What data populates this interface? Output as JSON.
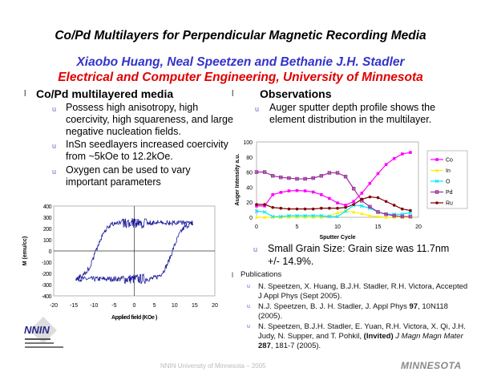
{
  "title": "Co/Pd Multilayers for Perpendicular Magnetic Recording Media",
  "authors": "Xiaobo Huang, Neal Speetzen and Bethanie J.H. Stadler",
  "affiliation": "Electrical and Computer Engineering, University of Minnesota",
  "left": {
    "heading": "Co/Pd multilayered media",
    "bullets": [
      "Possess high anisotropy, high coercivity, high squareness, and large negative nucleation fields.",
      "InSn seedlayers increased coercivity from ~5kOe to 12.2kOe.",
      "Oxygen can be used to vary important parameters"
    ]
  },
  "right": {
    "heading": "Observations",
    "bullet1": "Auger sputter depth profile shows the element distribution in the multilayer.",
    "bullet2": "Small Grain Size: Grain size was 11.7nm +/-  14.9%.",
    "pub_heading": "Publications",
    "pubs": [
      {
        "text": "N. Speetzen, X. Huang, B.J.H. Stadler, R.H. Victora, Accepted J Appl Phys (Sept 2005)."
      },
      {
        "pre": "N.J. Speetzen, B. J. H. Stadler, J. Appl Phys ",
        "bold": "97",
        "post": ", 10N118 (2005)."
      },
      {
        "pre": "N. Speetzen, B.J.H. Stadler, E. Yuan, R.H. Victora, X. Qi, J.H. Judy, N. Supper, and T. Pohkil, ",
        "bold": "(Invited)",
        "ital": " J Magn Magn Mater ",
        "bold2": "287",
        "post": ", 181-7 (2005)."
      }
    ]
  },
  "footer": "NNIN University of Minnesota – 2005",
  "logo_right": "MINNESOTA",
  "logo_left": "NNIN",
  "colors": {
    "author": "#3333cc",
    "affil": "#e00000",
    "bullet": "#6666cc",
    "loop": "#1a1a99"
  },
  "chart_data": [
    {
      "type": "line",
      "xlabel": "Sputter Cycle",
      "ylabel": "Auger Intensity a.u.",
      "xlim": [
        0,
        20
      ],
      "ylim": [
        0,
        100
      ],
      "xticks": [
        "0",
        "5",
        "10",
        "15",
        "20"
      ],
      "yticks": [
        "0",
        "20",
        "40",
        "60",
        "80",
        "100"
      ],
      "legend": "right",
      "x": [
        0,
        1,
        2,
        3,
        4,
        5,
        6,
        7,
        8,
        9,
        10,
        11,
        12,
        13,
        14,
        15,
        16,
        17,
        18,
        19
      ],
      "series": [
        {
          "name": "Co",
          "color": "#ff00ff",
          "marker": "square",
          "values": [
            15,
            15,
            30,
            33,
            35,
            35.5,
            35,
            33.5,
            30,
            25,
            19,
            16,
            21,
            32,
            45,
            58,
            70,
            78,
            84,
            86
          ]
        },
        {
          "name": "In",
          "color": "#ffee00",
          "marker": "triangle",
          "values": [
            0,
            0,
            0,
            0,
            0,
            0,
            0,
            0,
            0,
            2,
            6,
            8,
            7,
            5,
            2,
            1,
            0,
            0,
            0,
            0
          ]
        },
        {
          "name": "O",
          "color": "#00e5ff",
          "marker": "x",
          "values": [
            8,
            7,
            1,
            1,
            2,
            2,
            2,
            2,
            2,
            1,
            1,
            8,
            16,
            15,
            12,
            7,
            4,
            4,
            4,
            6
          ]
        },
        {
          "name": "Pd",
          "color": "#993399",
          "marker": "star",
          "values": [
            60,
            60,
            55,
            53,
            52,
            51,
            51,
            52,
            55,
            59,
            59,
            54,
            38,
            22,
            14,
            7,
            4,
            2,
            1,
            1
          ]
        },
        {
          "name": "Ru",
          "color": "#800000",
          "marker": "circle",
          "values": [
            17,
            17,
            13,
            12,
            11,
            11,
            11,
            11,
            12,
            12,
            12,
            13,
            17,
            24,
            27,
            26,
            21,
            16,
            11,
            9
          ]
        }
      ]
    },
    {
      "type": "line",
      "xlabel": "Applied field (KOe )",
      "ylabel": "M (emu/cc)",
      "xlim": [
        -20,
        20
      ],
      "ylim": [
        -400,
        400
      ],
      "xticks": [
        "-20",
        "-15",
        "-10",
        "-5",
        "0",
        "5",
        "10",
        "15",
        "20"
      ],
      "yticks": [
        "400",
        "300",
        "200",
        "100",
        "0",
        "-100",
        "-200",
        "-300",
        "-400"
      ],
      "series": [
        {
          "name": "hysteresis loop",
          "coercivity_kOe": 9.5,
          "saturation_emu_cc": 250,
          "field_range_kOe": [
            -14.5,
            14.5
          ]
        }
      ]
    }
  ]
}
